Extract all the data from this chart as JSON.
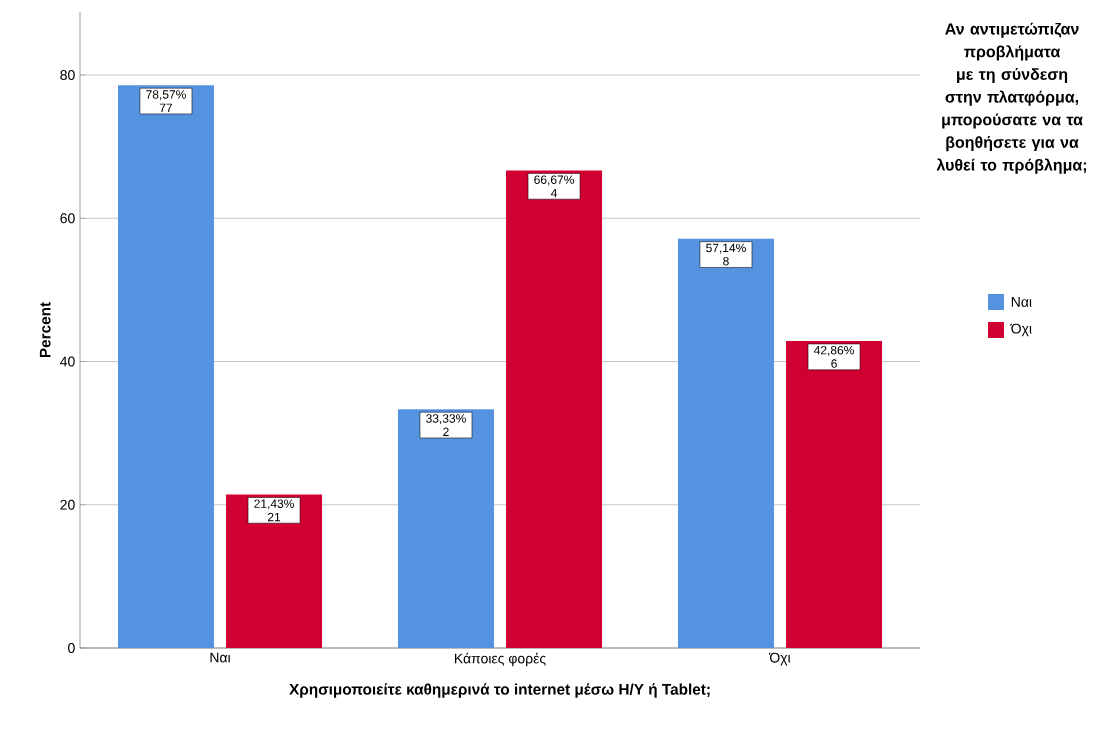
{
  "chart_data": {
    "type": "bar",
    "categories": [
      "Ναι",
      "Κάποιες φορές",
      "Όχι"
    ],
    "xlabel": "Χρησιμοποιείτε καθημερινά το internet μέσω Η/Υ ή Tablet;",
    "ylabel": "Percent",
    "legend_title": "Αν αντιμετώπιζαν προβλήματα με τη σύνδεση στην πλατφόρμα, μπορούσατε να τα βοηθήσετε για να λυθεί το πρόβλημα;",
    "series": [
      {
        "name": "Ναι",
        "color": "#5592e0",
        "values": [
          78.57,
          33.33,
          57.14
        ],
        "value_labels": [
          "78,57% 77",
          "33,33% 2",
          "57,14% 8"
        ]
      },
      {
        "name": "Όχι",
        "color": "#d20032",
        "values": [
          21.43,
          66.67,
          42.86
        ],
        "value_labels": [
          "21,43% 21",
          "66,67% 4",
          "42,86% 6"
        ]
      }
    ],
    "ylim": [
      0,
      88.8
    ],
    "yticks": [
      0,
      20,
      40,
      60,
      80
    ],
    "grid": "y",
    "legend": "right"
  }
}
